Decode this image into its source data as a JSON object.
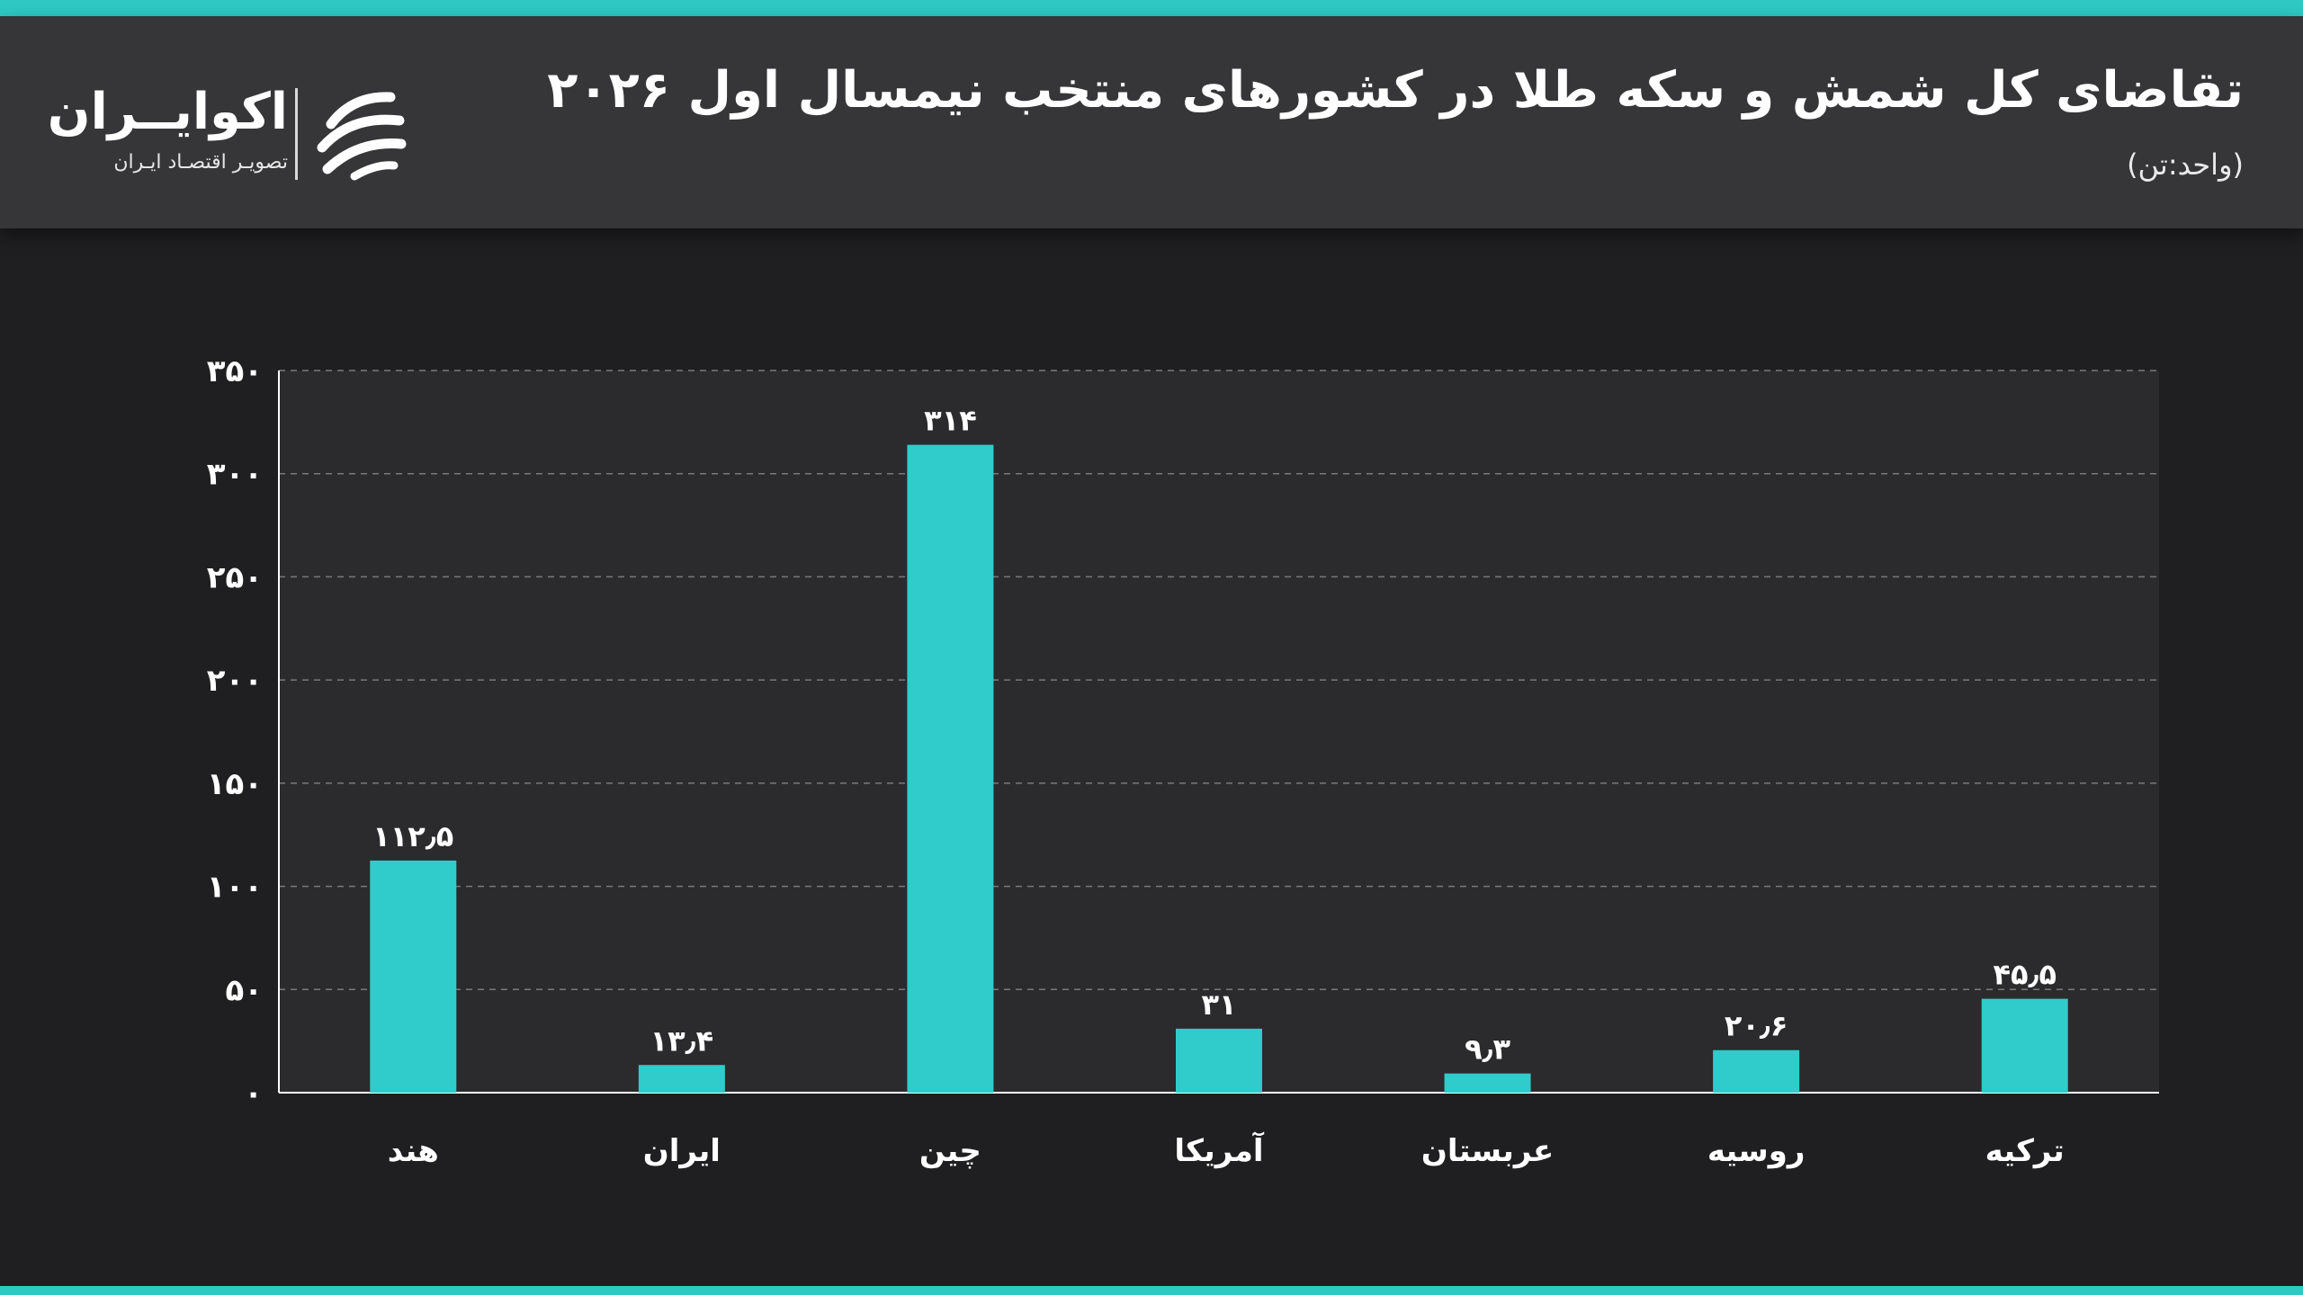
{
  "header": {
    "title": "تقاضای کل شمش و سکه طلا در کشورهای منتخب نیمسال اول ۲۰۲۶",
    "unit": "(واحد:تن)"
  },
  "logo": {
    "name": "اکوایــران",
    "tagline": "تصویـر اقتصـاد ایـران",
    "icon": "ecoiran-swirl-icon"
  },
  "colors": {
    "accent": "#2fc9c4",
    "bar": "#2fcccb",
    "background": "#1f1e20",
    "plot_area": "#2b2a2c",
    "header": "#363537"
  },
  "chart_data": {
    "type": "bar",
    "categories": [
      "هند",
      "ایران",
      "چین",
      "آمریکا",
      "عربستان",
      "روسیه",
      "ترکیه"
    ],
    "values": [
      112.5,
      13.4,
      314,
      31,
      9.3,
      20.6,
      45.5
    ],
    "value_labels": [
      "۱۱۲٫۵",
      "۱۳٫۴",
      "۳۱۴",
      "۳۱",
      "۹٫۳",
      "۲۰٫۶",
      "۴۵٫۵"
    ],
    "y_ticks": [
      0,
      50,
      100,
      150,
      200,
      250,
      300,
      350
    ],
    "y_tick_labels": [
      "۰",
      "۵۰",
      "۱۰۰",
      "۱۵۰",
      "۲۰۰",
      "۲۵۰",
      "۳۰۰",
      "۳۵۰"
    ],
    "ylim": [
      0,
      350
    ],
    "grid": true,
    "title": "تقاضای کل شمش و سکه طلا در کشورهای منتخب نیمسال اول ۲۰۲۶",
    "xlabel": "",
    "ylabel": ""
  }
}
